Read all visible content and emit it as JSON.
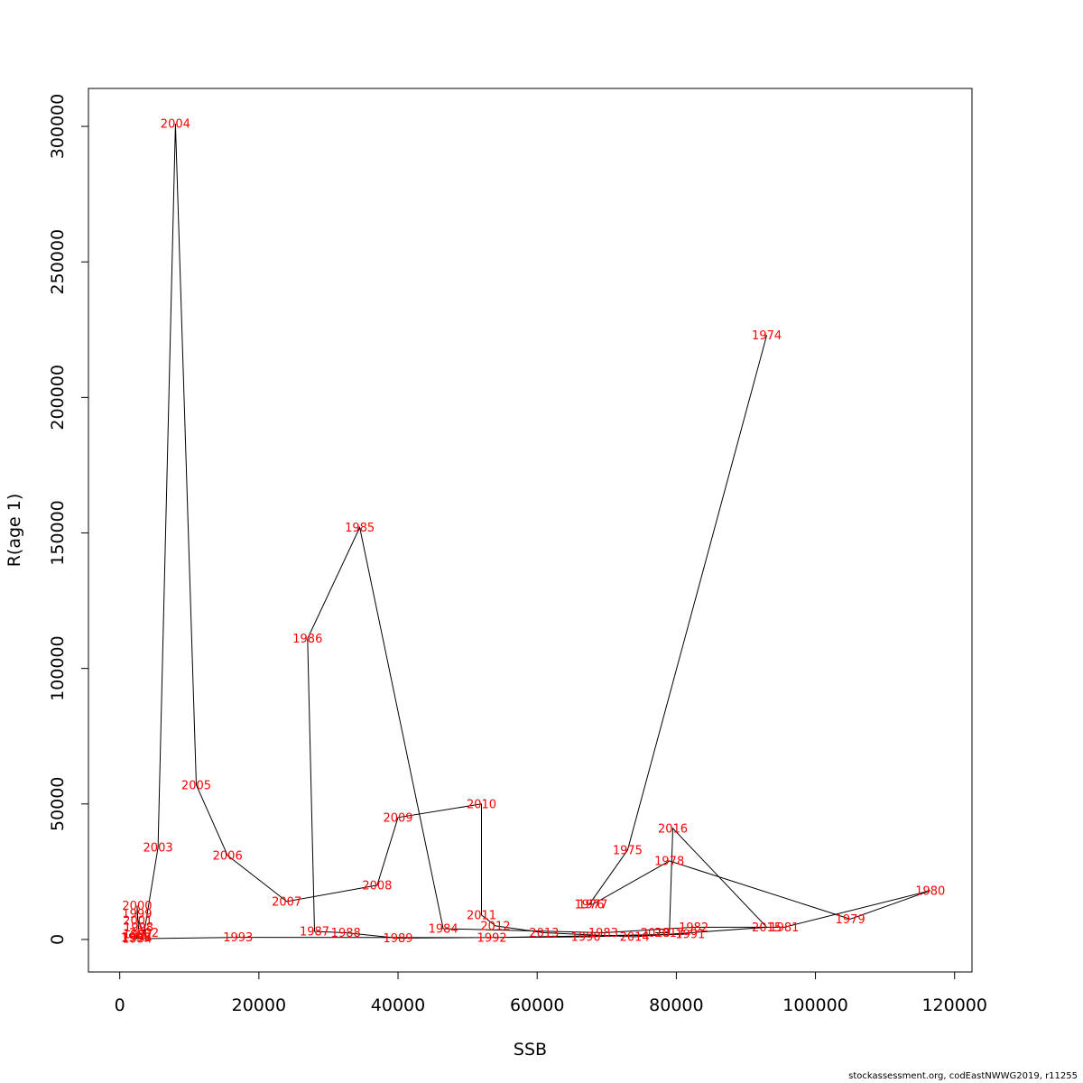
{
  "chart_data": {
    "type": "line",
    "xlabel": "SSB",
    "ylabel": "R(age 1)",
    "xlim": [
      -4500,
      122500
    ],
    "ylim": [
      -12000,
      314000
    ],
    "x_ticks": [
      0,
      20000,
      40000,
      60000,
      80000,
      100000,
      120000
    ],
    "y_ticks": [
      0,
      50000,
      100000,
      150000,
      200000,
      250000,
      300000
    ],
    "label_color": "#ff0000",
    "line_color": "#000000",
    "grid": false,
    "points": [
      {
        "year": "1974",
        "ssb": 93000,
        "r": 223000
      },
      {
        "year": "1975",
        "ssb": 73000,
        "r": 33000
      },
      {
        "year": "1976",
        "ssb": 67500,
        "r": 13000
      },
      {
        "year": "1977",
        "ssb": 68000,
        "r": 13000
      },
      {
        "year": "1978",
        "ssb": 79000,
        "r": 29000
      },
      {
        "year": "1979",
        "ssb": 105000,
        "r": 7500
      },
      {
        "year": "1980",
        "ssb": 116500,
        "r": 18000
      },
      {
        "year": "1981",
        "ssb": 95500,
        "r": 4500
      },
      {
        "year": "1982",
        "ssb": 82500,
        "r": 4500
      },
      {
        "year": "1983",
        "ssb": 69500,
        "r": 2500
      },
      {
        "year": "1984",
        "ssb": 46500,
        "r": 4000
      },
      {
        "year": "1985",
        "ssb": 34500,
        "r": 152000
      },
      {
        "year": "1986",
        "ssb": 27000,
        "r": 111000
      },
      {
        "year": "1987",
        "ssb": 28000,
        "r": 3000
      },
      {
        "year": "1988",
        "ssb": 32500,
        "r": 2500
      },
      {
        "year": "1989",
        "ssb": 40000,
        "r": 500
      },
      {
        "year": "1990",
        "ssb": 67000,
        "r": 1000
      },
      {
        "year": "1991",
        "ssb": 82000,
        "r": 2000
      },
      {
        "year": "1992",
        "ssb": 53500,
        "r": 700
      },
      {
        "year": "1993",
        "ssb": 17000,
        "r": 800
      },
      {
        "year": "1994",
        "ssb": 2500,
        "r": 300
      },
      {
        "year": "1995",
        "ssb": 2300,
        "r": 600
      },
      {
        "year": "1996",
        "ssb": 2400,
        "r": 800
      },
      {
        "year": "1997",
        "ssb": 2600,
        "r": 2000
      },
      {
        "year": "1998",
        "ssb": 2700,
        "r": 4500
      },
      {
        "year": "1999",
        "ssb": 2500,
        "r": 9500
      },
      {
        "year": "2000",
        "ssb": 2500,
        "r": 12500
      },
      {
        "year": "2001",
        "ssb": 2600,
        "r": 7000
      },
      {
        "year": "2002",
        "ssb": 3500,
        "r": 2500
      },
      {
        "year": "2003",
        "ssb": 5500,
        "r": 34000
      },
      {
        "year": "2004",
        "ssb": 8000,
        "r": 301000
      },
      {
        "year": "2005",
        "ssb": 11000,
        "r": 57000
      },
      {
        "year": "2006",
        "ssb": 15500,
        "r": 31000
      },
      {
        "year": "2007",
        "ssb": 24000,
        "r": 14000
      },
      {
        "year": "2008",
        "ssb": 37000,
        "r": 20000
      },
      {
        "year": "2009",
        "ssb": 40000,
        "r": 45000
      },
      {
        "year": "2010",
        "ssb": 52000,
        "r": 50000
      },
      {
        "year": "2011",
        "ssb": 52000,
        "r": 9000
      },
      {
        "year": "2012",
        "ssb": 54000,
        "r": 5000
      },
      {
        "year": "2013",
        "ssb": 61000,
        "r": 2500
      },
      {
        "year": "2014",
        "ssb": 74000,
        "r": 1000
      },
      {
        "year": "2015",
        "ssb": 93000,
        "r": 4500
      },
      {
        "year": "2016",
        "ssb": 79500,
        "r": 41000
      },
      {
        "year": "2017",
        "ssb": 79000,
        "r": 2500
      },
      {
        "year": "2018",
        "ssb": 77000,
        "r": 2500
      }
    ]
  },
  "footer": "stockassessment.org, codEastNWWG2019, r11255"
}
